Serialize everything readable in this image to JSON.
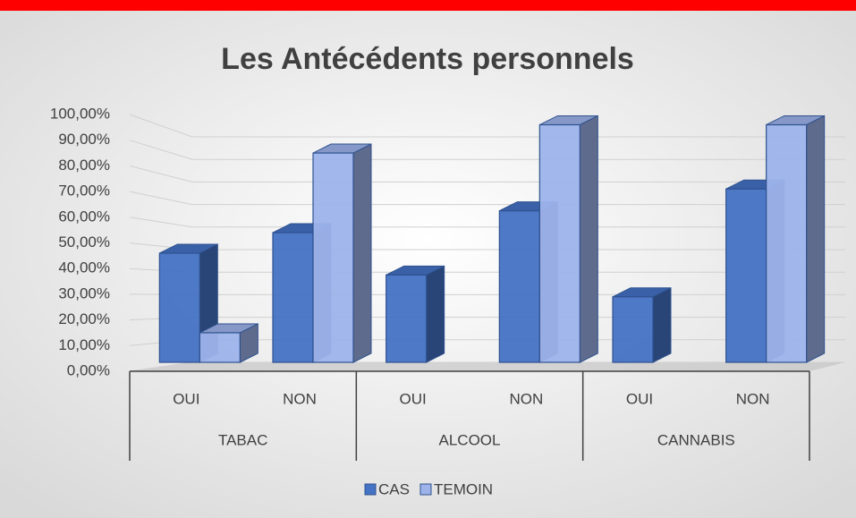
{
  "chart_data": {
    "type": "bar3d",
    "title": "Les Antécédents personnels",
    "groups": [
      "TABAC",
      "ALCOOL",
      "CANNABIS"
    ],
    "categories": [
      "OUI",
      "NON",
      "OUI",
      "NON",
      "OUI",
      "NON"
    ],
    "series": [
      {
        "name": "CAS",
        "color": "#4472c4",
        "values": [
          46,
          54,
          37.5,
          62.5,
          29,
          71
        ]
      },
      {
        "name": "TEMOIN",
        "color": "#9db3ea",
        "values": [
          15,
          85,
          0,
          96,
          0,
          96
        ]
      }
    ],
    "ylim": [
      0,
      100
    ],
    "yticks": [
      {
        "value": 0,
        "label": "0,00%"
      },
      {
        "value": 10,
        "label": "10,00%"
      },
      {
        "value": 20,
        "label": "20,00%"
      },
      {
        "value": 30,
        "label": "30,00%"
      },
      {
        "value": 40,
        "label": "40,00%"
      },
      {
        "value": 50,
        "label": "50,00%"
      },
      {
        "value": 60,
        "label": "60,00%"
      },
      {
        "value": 70,
        "label": "70,00%"
      },
      {
        "value": 80,
        "label": "80,00%"
      },
      {
        "value": 90,
        "label": "90,00%"
      },
      {
        "value": 100,
        "label": "100,00%"
      }
    ],
    "grid": true,
    "legend": "bottom"
  }
}
